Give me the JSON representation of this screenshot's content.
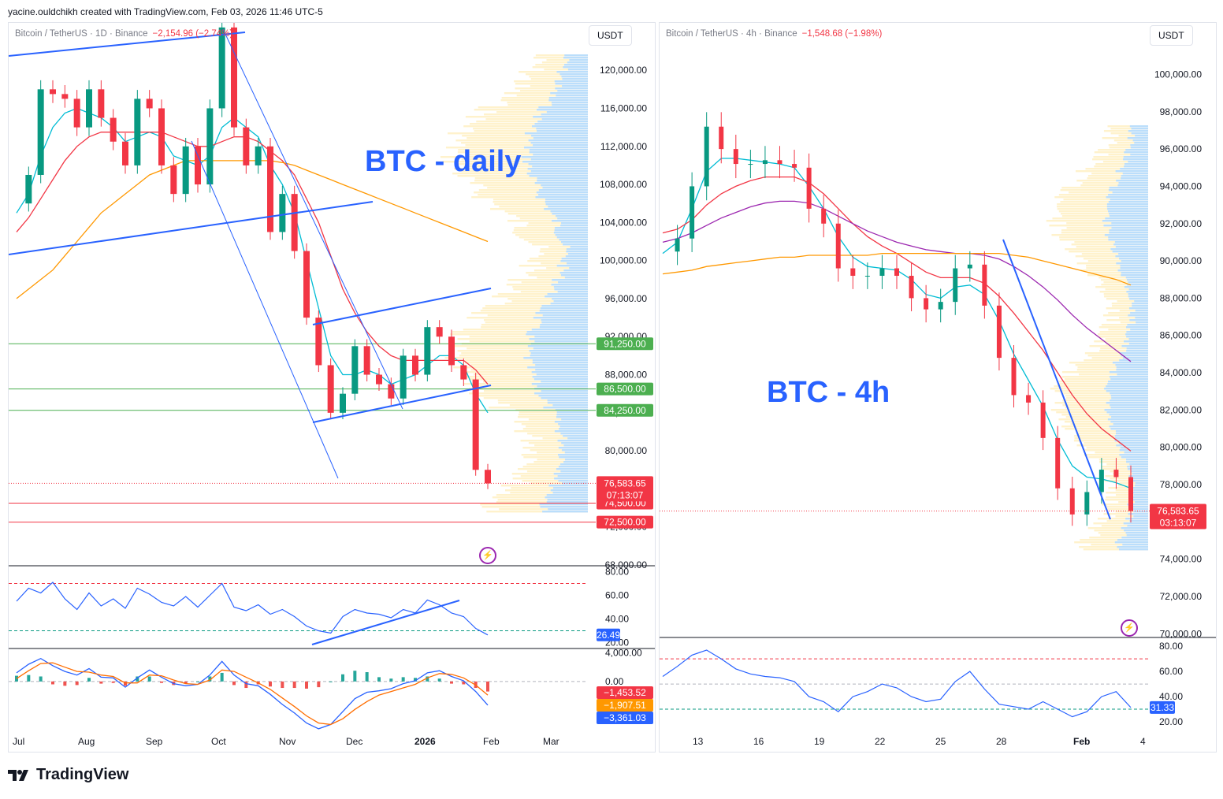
{
  "credit": "yacine.ouldchikh created with TradingView.com, Feb 03, 2026 11:46 UTC-5",
  "brand": "TradingView",
  "colors": {
    "accent": "#2962ff",
    "down": "#f23645",
    "up": "#089981",
    "green_tag": "#4caf50",
    "orange": "#ff9800",
    "purple": "#9c27b0"
  },
  "icons": [
    "tradingview-logo-icon",
    "lightning-icon"
  ],
  "left": {
    "symbol": "Bitcoin / TetherUS · 1D · Binance",
    "change": "−2,154.96 (−2.74%)",
    "currency": "USDT",
    "annotation": "BTC - daily"
  },
  "right": {
    "symbol": "Bitcoin / TetherUS · 4h · Binance",
    "change": "−1,548.68 (−1.98%)",
    "currency": "USDT",
    "annotation": "BTC - 4h"
  },
  "chart_data": [
    {
      "type": "line",
      "title": "Bitcoin / TetherUS · 1D · Binance",
      "x_ticks": [
        "Jul",
        "Aug",
        "Sep",
        "Oct",
        "Nov",
        "Dec",
        "2026",
        "Feb",
        "Mar"
      ],
      "y_ticks": [
        "68,000.00",
        "72,000.00",
        "76,000.00",
        "80,000.00",
        "84,000.00",
        "88,000.00",
        "92,000.00",
        "96,000.00",
        "100,000.00",
        "104,000.00",
        "108,000.00",
        "112,000.00",
        "116,000.00",
        "120,000.00"
      ],
      "ylim": [
        68000,
        122500
      ],
      "series": [
        {
          "name": "",
          "role": "close",
          "color": "#f23645",
          "values": [
            106000,
            109000,
            118000,
            117500,
            117000,
            114000,
            118000,
            115000,
            112500,
            110000,
            117000,
            116000,
            110000,
            107000,
            112000,
            108000,
            116000,
            124500,
            114000,
            110000,
            112000,
            103000,
            107000,
            101000,
            94000,
            89000,
            84000,
            86000,
            91000,
            88000,
            87000,
            85500,
            90000,
            88000,
            93000,
            92000,
            89000,
            87500,
            78000,
            76583
          ]
        },
        {
          "name": "",
          "role": "sma-20",
          "color": "#00bcd4",
          "values": [
            105000,
            107000,
            111000,
            114000,
            115500,
            116000,
            115500,
            115000,
            114000,
            112500,
            113000,
            113500,
            113000,
            111000,
            110500,
            110000,
            111000,
            114000,
            115000,
            114000,
            113000,
            110000,
            108000,
            105000,
            100000,
            95000,
            90000,
            88000,
            88000,
            88500,
            88000,
            87000,
            87500,
            88000,
            89000,
            90000,
            90000,
            89000,
            86000,
            84000
          ]
        },
        {
          "name": "",
          "role": "sma-50",
          "color": "#f23645",
          "values": [
            103000,
            104500,
            106500,
            108500,
            110500,
            112000,
            113000,
            113500,
            113500,
            113500,
            113500,
            113500,
            113500,
            113000,
            112500,
            112000,
            112000,
            112500,
            113000,
            113000,
            112500,
            111500,
            110500,
            109000,
            106500,
            104000,
            100500,
            97000,
            94500,
            92500,
            91000,
            90000,
            89500,
            89500,
            89500,
            89500,
            89500,
            89500,
            88500,
            87000
          ]
        },
        {
          "name": "",
          "role": "sma-200",
          "color": "#ff9800",
          "values": [
            96000,
            97000,
            98000,
            99000,
            100500,
            102000,
            103500,
            105000,
            106000,
            107000,
            108000,
            109000,
            109500,
            110000,
            110500,
            110500,
            110500,
            110500,
            110500,
            110500,
            110500,
            110500,
            110300,
            110000,
            109500,
            109000,
            108500,
            108000,
            107500,
            107000,
            106500,
            106000,
            105500,
            105000,
            104500,
            104000,
            103500,
            103000,
            102500,
            102000
          ]
        }
      ],
      "horizontal_levels": [
        {
          "label": "91,250.00",
          "value": 91250,
          "color": "#4caf50"
        },
        {
          "label": "86,500.00",
          "value": 86500,
          "color": "#4caf50"
        },
        {
          "label": "84,250.00",
          "value": 84250,
          "color": "#4caf50"
        },
        {
          "label": "74,500.00",
          "value": 74500,
          "color": "#f23645"
        },
        {
          "label": "72,500.00",
          "value": 72500,
          "color": "#f23645"
        }
      ],
      "last_price": {
        "label": "76,583.65",
        "value": 76583.65,
        "countdown": "07:13:07"
      },
      "rsi": {
        "y_ticks": [
          "20.00",
          "40.00",
          "60.00",
          "80.00"
        ],
        "last": "26.49",
        "upper": 70,
        "lower": 30,
        "values": [
          55,
          66,
          62,
          71,
          57,
          48,
          62,
          51,
          57,
          49,
          66,
          61,
          54,
          51,
          59,
          50,
          60,
          70,
          50,
          47,
          52,
          44,
          48,
          42,
          34,
          30,
          28,
          42,
          48,
          45,
          44,
          41,
          48,
          45,
          56,
          52,
          45,
          42,
          32,
          26.49
        ]
      },
      "macd": {
        "y_ticks": [
          "0.00",
          "4,000.00"
        ],
        "labels": [
          "−1,453.52",
          "−1,907.51",
          "−3,361.03"
        ],
        "macd_values": [
          1200,
          2400,
          3200,
          2200,
          1400,
          900,
          1800,
          600,
          500,
          -800,
          500,
          1600,
          600,
          -300,
          -600,
          -400,
          900,
          2800,
          900,
          -300,
          -600,
          -1800,
          -3200,
          -4400,
          -5800,
          -6600,
          -6000,
          -4200,
          -2400,
          -1500,
          -1300,
          -1000,
          -300,
          100,
          1200,
          1500,
          700,
          100,
          -1400,
          -3300
        ],
        "signal_values": [
          400,
          1500,
          2500,
          2600,
          2000,
          1400,
          1300,
          900,
          700,
          -200,
          -200,
          900,
          800,
          200,
          -300,
          -400,
          200,
          1600,
          1400,
          600,
          -200,
          -1100,
          -2300,
          -3500,
          -4800,
          -5800,
          -6000,
          -5200,
          -3900,
          -2800,
          -1900,
          -1400,
          -900,
          -400,
          500,
          1100,
          1000,
          500,
          -500,
          -1900
        ],
        "colors": {
          "macd": "#2962ff",
          "signal": "#ff6d00"
        }
      }
    },
    {
      "type": "line",
      "title": "Bitcoin / TetherUS · 4h · Binance",
      "x_ticks": [
        "13",
        "16",
        "19",
        "22",
        "25",
        "28",
        "Feb",
        "4"
      ],
      "y_ticks": [
        "70,000.00",
        "72,000.00",
        "74,000.00",
        "76,000.00",
        "78,000.00",
        "80,000.00",
        "82,000.00",
        "84,000.00",
        "86,000.00",
        "88,000.00",
        "90,000.00",
        "92,000.00",
        "94,000.00",
        "96,000.00",
        "98,000.00",
        "100,000.00"
      ],
      "ylim": [
        69800,
        101500
      ],
      "series": [
        {
          "name": "",
          "role": "close",
          "color": "#f23645",
          "values": [
            90500,
            91200,
            94000,
            97200,
            96000,
            95200,
            95200,
            95400,
            95200,
            95000,
            92800,
            92000,
            89600,
            89200,
            89200,
            89600,
            89200,
            88000,
            87400,
            87800,
            89600,
            89800,
            87600,
            84800,
            82800,
            82400,
            80500,
            77800,
            76400,
            77600,
            78800,
            78400,
            76583
          ]
        },
        {
          "name": "",
          "role": "ema-20",
          "color": "#00bcd4",
          "values": [
            90400,
            91000,
            92800,
            94800,
            95500,
            95500,
            95400,
            95300,
            95200,
            95000,
            94000,
            92800,
            91300,
            90200,
            89700,
            89600,
            89500,
            89000,
            88200,
            88000,
            88600,
            88700,
            88200,
            86800,
            85000,
            83600,
            82200,
            80400,
            79000,
            78400,
            78300,
            78100,
            77800
          ]
        },
        {
          "name": "",
          "role": "ema-50",
          "color": "#f23645",
          "values": [
            91500,
            91700,
            92200,
            93000,
            93600,
            94000,
            94300,
            94500,
            94500,
            94500,
            94200,
            93600,
            92800,
            92000,
            91300,
            90800,
            90400,
            89900,
            89400,
            89100,
            89100,
            89100,
            88800,
            88100,
            87200,
            86200,
            85200,
            84000,
            82800,
            81800,
            81000,
            80400,
            79800
          ]
        },
        {
          "name": "",
          "role": "ema-100",
          "color": "#9c27b0",
          "values": [
            91000,
            91200,
            91500,
            91900,
            92300,
            92600,
            92900,
            93100,
            93200,
            93200,
            93100,
            92800,
            92400,
            92000,
            91600,
            91300,
            91000,
            90800,
            90600,
            90500,
            90400,
            90400,
            90300,
            90100,
            89700,
            89200,
            88600,
            87900,
            87100,
            86400,
            85800,
            85200,
            84600
          ]
        },
        {
          "name": "",
          "role": "ema-200",
          "color": "#ff9800",
          "values": [
            89300,
            89400,
            89500,
            89700,
            89800,
            89900,
            90000,
            90100,
            90200,
            90200,
            90300,
            90300,
            90300,
            90300,
            90300,
            90400,
            90400,
            90400,
            90400,
            90400,
            90400,
            90400,
            90400,
            90400,
            90300,
            90200,
            90000,
            89800,
            89600,
            89400,
            89200,
            89000,
            88700
          ]
        }
      ],
      "last_price": {
        "label": "76,583.65",
        "value": 76583.65,
        "countdown": "03:13:07"
      },
      "rsi": {
        "y_ticks": [
          "20.00",
          "40.00",
          "60.00",
          "80.00"
        ],
        "last": "31.33",
        "upper": 70,
        "lower": 30,
        "values": [
          56,
          64,
          73,
          77,
          70,
          62,
          58,
          56,
          55,
          52,
          40,
          36,
          28,
          40,
          44,
          50,
          47,
          40,
          36,
          38,
          52,
          60,
          46,
          34,
          32,
          30,
          36,
          30,
          24,
          28,
          40,
          44,
          31.33
        ]
      }
    }
  ]
}
